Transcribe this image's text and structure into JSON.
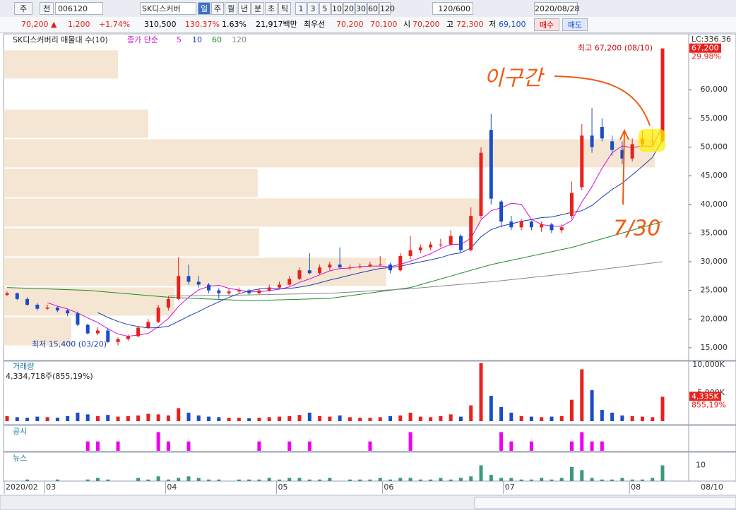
{
  "toolbar": {
    "market": "주",
    "prev": "전",
    "code": "006120",
    "name": "SK디스커버",
    "periods": [
      "일",
      "주",
      "월",
      "년",
      "분",
      "초",
      "틱"
    ],
    "intervals": [
      "1",
      "3",
      "5",
      "10",
      "20",
      "30",
      "60",
      "120"
    ],
    "count": "120/600",
    "date": "2020/08/28"
  },
  "quote": {
    "price": "70,200 ▲",
    "change": "1,200",
    "change_pct": "+1.74%",
    "volume": "310,500",
    "volume_ratio": "130.37%",
    "turnover": "1.63%",
    "amount": "21,917백만",
    "best_label": "최우선",
    "ask": "70,200",
    "bid": "70,100",
    "open_label": "시",
    "open": "70,200",
    "high_label": "고",
    "high": "72,300",
    "low_label": "저",
    "low": "69,100",
    "buy": "매수",
    "sell": "매도"
  },
  "chart_data": {
    "type": "candlestick",
    "legend_title": "SK디스커버리 매물대 수(10)",
    "ma_label": "종가 단순",
    "moving_averages": [
      {
        "name": "5",
        "color": "#d010d0"
      },
      {
        "name": "10",
        "color": "#1a3fb0"
      },
      {
        "name": "60",
        "color": "#1f8a2a"
      },
      {
        "name": "120",
        "color": "#888888"
      }
    ],
    "up_color": "#e8211c",
    "down_color": "#1a4dc5",
    "ylim": [
      12900,
      69500
    ],
    "yticks": [
      {
        "value": 15000,
        "label": "15,000"
      },
      {
        "value": 20000,
        "label": "20,000"
      },
      {
        "value": 25000,
        "label": "25,000"
      },
      {
        "value": 30000,
        "label": "30,000"
      },
      {
        "value": 35000,
        "label": "35,000"
      },
      {
        "value": 40000,
        "label": "40,000"
      },
      {
        "value": 45000,
        "label": "45,000"
      },
      {
        "value": 50000,
        "label": "50,000"
      },
      {
        "value": 55000,
        "label": "55,000"
      },
      {
        "value": 60000,
        "label": "60,000"
      }
    ],
    "xticks": [
      {
        "value": 0,
        "label": "2020/02"
      },
      {
        "value": 4,
        "label": "03"
      },
      {
        "value": 16,
        "label": "04"
      },
      {
        "value": 27,
        "label": "05"
      },
      {
        "value": 37.5,
        "label": "06"
      },
      {
        "value": 49.5,
        "label": "07"
      },
      {
        "value": 62,
        "label": "08"
      }
    ],
    "cursor_date": "08/10",
    "lc_label": "LC:336.36",
    "last_label": "67,200",
    "pct_label": "29.98%",
    "high_annotation": "최고 67,200 (08/10)",
    "low_annotation": "최저 15,400 (03/20)",
    "handwriting": [
      "이구간",
      "7/30"
    ],
    "candles": [
      [
        24200,
        24800,
        24000,
        24500
      ],
      [
        24500,
        24600,
        23300,
        23500
      ],
      [
        23500,
        23800,
        22300,
        22500
      ],
      [
        22500,
        22800,
        21500,
        21800
      ],
      [
        21800,
        22500,
        21600,
        22000
      ],
      [
        22000,
        22200,
        21200,
        21500
      ],
      [
        21500,
        21800,
        20500,
        21000
      ],
      [
        21000,
        21300,
        18800,
        19000
      ],
      [
        19000,
        19200,
        17300,
        17500
      ],
      [
        17500,
        18600,
        17200,
        18000
      ],
      [
        18000,
        18400,
        15800,
        16000
      ],
      [
        16000,
        16800,
        15400,
        16500
      ],
      [
        16500,
        17300,
        16200,
        17000
      ],
      [
        17000,
        18800,
        16800,
        18500
      ],
      [
        18500,
        20000,
        18300,
        19500
      ],
      [
        19500,
        22500,
        19300,
        22000
      ],
      [
        22000,
        24000,
        21500,
        23500
      ],
      [
        23500,
        30800,
        23300,
        27500
      ],
      [
        27500,
        29500,
        26000,
        26500
      ],
      [
        26500,
        27500,
        25500,
        26000
      ],
      [
        26000,
        26300,
        24500,
        25000
      ],
      [
        25000,
        25400,
        23500,
        24500
      ],
      [
        24500,
        25300,
        24200,
        24800
      ],
      [
        24800,
        25500,
        24500,
        25000
      ],
      [
        25000,
        25200,
        24200,
        24500
      ],
      [
        24500,
        25400,
        24300,
        25000
      ],
      [
        25000,
        26000,
        24800,
        25500
      ],
      [
        25500,
        26500,
        25200,
        26000
      ],
      [
        26000,
        27500,
        25800,
        27000
      ],
      [
        27000,
        29000,
        26800,
        28500
      ],
      [
        28500,
        31500,
        27800,
        28000
      ],
      [
        28000,
        29500,
        27800,
        29000
      ],
      [
        29000,
        30000,
        28500,
        29500
      ],
      [
        29500,
        32500,
        28800,
        29000
      ],
      [
        29000,
        29500,
        28500,
        29000
      ],
      [
        29000,
        29700,
        28800,
        29200
      ],
      [
        29200,
        30000,
        29000,
        29500
      ],
      [
        29500,
        31000,
        29200,
        29500
      ],
      [
        29500,
        29800,
        28000,
        28500
      ],
      [
        28500,
        31500,
        28300,
        31000
      ],
      [
        31000,
        34500,
        30500,
        32000
      ],
      [
        32000,
        33000,
        31500,
        32500
      ],
      [
        32500,
        33500,
        32000,
        33000
      ],
      [
        33000,
        34000,
        32500,
        33000
      ],
      [
        33000,
        35500,
        32800,
        34500
      ],
      [
        34500,
        34800,
        31500,
        32000
      ],
      [
        32000,
        39500,
        31800,
        38000
      ],
      [
        38000,
        50000,
        37500,
        49000
      ],
      [
        53000,
        55800,
        40000,
        41000
      ],
      [
        40500,
        40800,
        36000,
        37000
      ],
      [
        37000,
        38000,
        35500,
        36000
      ],
      [
        36000,
        37500,
        35500,
        37000
      ],
      [
        37000,
        37200,
        35500,
        36000
      ],
      [
        36000,
        37000,
        35200,
        36500
      ],
      [
        36500,
        36800,
        35000,
        35500
      ],
      [
        35500,
        36500,
        35000,
        36000
      ],
      [
        38000,
        44000,
        37500,
        42000
      ],
      [
        43000,
        54000,
        42500,
        52000
      ],
      [
        52000,
        56800,
        49000,
        50000
      ],
      [
        53500,
        55000,
        51000,
        51500
      ],
      [
        51000,
        52000,
        48500,
        49500
      ],
      [
        49500,
        51000,
        47000,
        48000
      ],
      [
        48000,
        51500,
        47500,
        50500
      ],
      [
        50500,
        52800,
        50000,
        51500
      ],
      [
        51000,
        53000,
        50200,
        51000
      ],
      [
        51000,
        67200,
        50500,
        67200
      ]
    ],
    "ma60": {
      "x": [
        0,
        8,
        16,
        24,
        32,
        40,
        48,
        56,
        65
      ],
      "values": [
        25500,
        25000,
        23800,
        23200,
        23600,
        25500,
        29500,
        32500,
        37000
      ]
    },
    "ma120": {
      "x": [
        16,
        24,
        32,
        40,
        48,
        56,
        65
      ],
      "values": [
        24000,
        24200,
        24500,
        25300,
        26500,
        28000,
        30000
      ]
    },
    "profile": {
      "bins": [
        15300,
        20470,
        25640,
        30810,
        35980,
        41150,
        46320,
        51490,
        56660,
        61830,
        67000
      ],
      "values": [
        96,
        242,
        542,
        362,
        675,
        360,
        922,
        205,
        0,
        162
      ],
      "color": "#f5e6d3"
    },
    "volume": {
      "title": "거래량",
      "summary": "4,334,718주(855,19%)",
      "last_label": "4,335K",
      "pct_label": "855,19%",
      "ylim": [
        0,
        10400
      ],
      "yticks": [
        {
          "value": 5000,
          "label": "5,000K"
        },
        {
          "value": 10000,
          "label": "10,000K"
        }
      ],
      "values": [
        900,
        700,
        600,
        800,
        700,
        600,
        900,
        1500,
        1200,
        900,
        1100,
        800,
        900,
        1000,
        1300,
        1200,
        1000,
        2300,
        1500,
        1000,
        800,
        700,
        600,
        600,
        500,
        600,
        700,
        800,
        900,
        1100,
        1500,
        900,
        800,
        1000,
        700,
        600,
        600,
        700,
        900,
        1000,
        1500,
        800,
        700,
        900,
        1200,
        800,
        2800,
        10300,
        4500,
        2500,
        1500,
        900,
        800,
        700,
        800,
        900,
        3800,
        9200,
        5500,
        2000,
        1500,
        1000,
        900,
        800,
        700,
        4335
      ]
    },
    "disclosure": {
      "title": "공시",
      "color": "#f000f0",
      "ylim": [
        0,
        2.5
      ],
      "values": [
        0,
        0,
        0,
        0,
        0,
        0,
        0,
        0,
        1,
        1,
        0,
        1,
        0,
        0,
        0,
        2,
        1,
        0,
        1,
        0,
        0,
        0,
        0,
        0,
        0,
        1,
        0,
        0,
        1,
        0,
        1,
        0,
        0,
        0,
        0,
        0,
        1,
        0,
        0,
        0,
        2,
        0,
        0,
        0,
        0,
        0,
        0,
        0,
        0,
        2,
        1,
        0,
        1,
        0,
        0,
        0,
        1,
        2,
        1,
        1,
        0,
        0,
        0,
        0,
        0,
        0
      ]
    },
    "news": {
      "title": "뉴스",
      "color": "#3a9a7a",
      "ylim": [
        0,
        17
      ],
      "yticks": [
        10
      ],
      "values": [
        0,
        0,
        1,
        0,
        0,
        1,
        0,
        0,
        1,
        2,
        1,
        0,
        0,
        2,
        1,
        3,
        1,
        2,
        3,
        2,
        1,
        1,
        0,
        1,
        1,
        1,
        2,
        1,
        2,
        2,
        1,
        1,
        2,
        0,
        1,
        1,
        1,
        2,
        1,
        2,
        2,
        1,
        1,
        2,
        1,
        2,
        3,
        10,
        4,
        2,
        2,
        1,
        1,
        2,
        1,
        2,
        9,
        7,
        2,
        1,
        1,
        2,
        1,
        1,
        2,
        10
      ]
    }
  }
}
